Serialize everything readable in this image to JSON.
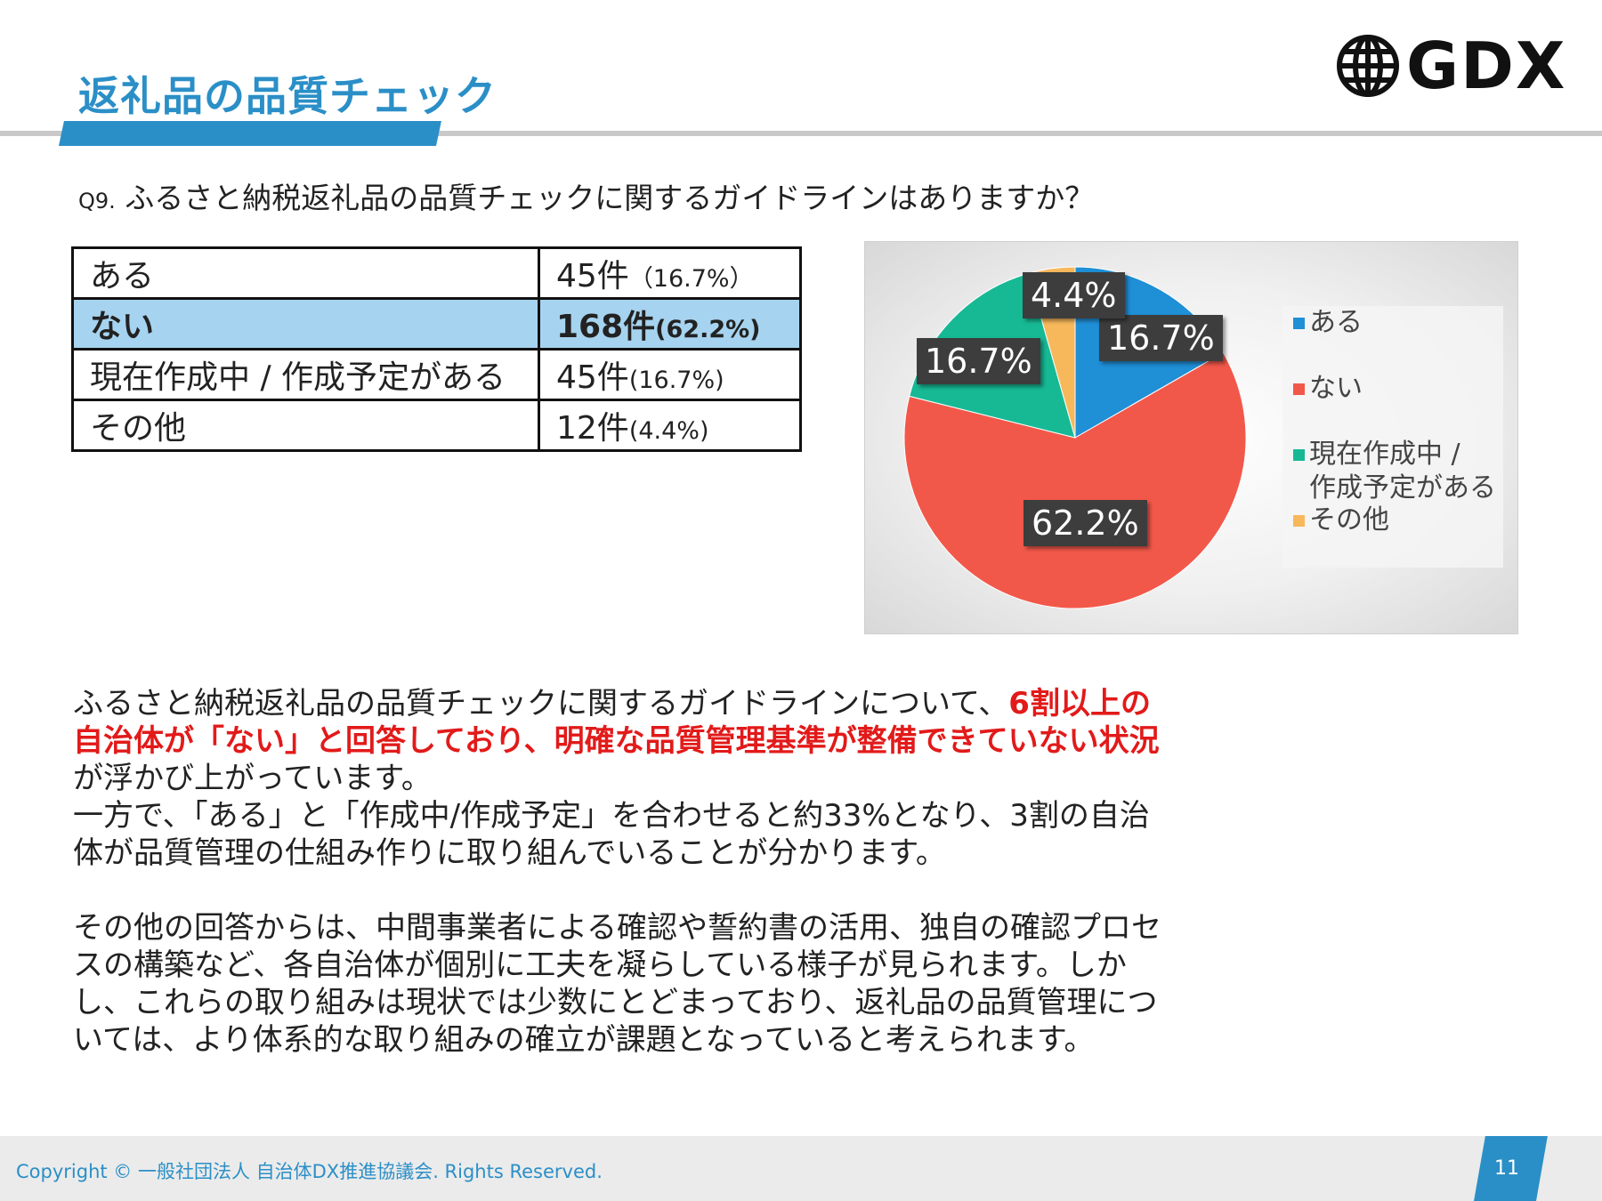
{
  "header": {
    "title": "返礼品の品質チェック",
    "logo_text": "GDX"
  },
  "question": {
    "number": "Q9.",
    "text": "ふるさと納税返礼品の品質チェックに関するガイドラインはありますか？"
  },
  "table": {
    "rows": [
      {
        "label": "ある",
        "count": "45件",
        "pct": "（16.7%）"
      },
      {
        "label": "ない",
        "count": "168件",
        "pct": "(62.2%)"
      },
      {
        "label": "現在作成中 / 作成予定がある",
        "count": "45件",
        "pct": "(16.7%)"
      },
      {
        "label": "その他",
        "count": "12件",
        "pct": "(4.4%)"
      }
    ]
  },
  "chart_data": {
    "type": "pie",
    "categories": [
      "ある",
      "ない",
      "現在作成中 / 作成予定がある",
      "その他"
    ],
    "values": [
      16.7,
      62.2,
      16.7,
      4.4
    ],
    "data_labels": [
      "16.7%",
      "62.2%",
      "16.7%",
      "4.4%"
    ],
    "legend": [
      "ある",
      "ない",
      "現在作成中 /",
      "作成予定がある",
      "その他"
    ],
    "legend_position": "right",
    "colors": [
      "#1f8fd6",
      "#f2584a",
      "#17b995",
      "#f7b85c"
    ]
  },
  "body": {
    "p1_a": "ふるさと納税返礼品の品質チェックに関するガイドラインについて、",
    "p1_highlight": "6割以上の自治体が「ない」と回答しており、明確な品質管理基準が整備できていない状況",
    "p1_b": "が浮かび上がっています。",
    "p2": "一方で、「ある」と「作成中/作成予定」を合わせると約33%となり、3割の自治体が品質管理の仕組み作りに取り組んでいることが分かります。",
    "p3": "その他の回答からは、中間事業者による確認や誓約書の活用、独自の確認プロセスの構築など、各自治体が個別に工夫を凝らしている様子が見られます。しかし、これらの取り組みは現状では少数にとどまっており、返礼品の品質管理については、より体系的な取り組みの確立が課題となっていると考えられます。"
  },
  "footer": {
    "copyright": "Copyright © 一般社団法人 自治体DX推進協議会. Rights Reserved.",
    "page": "11"
  },
  "colors": {
    "accent": "#2b8fc7",
    "highlight_row": "#a6d3ef",
    "emphasis_red": "#e21a1a"
  }
}
